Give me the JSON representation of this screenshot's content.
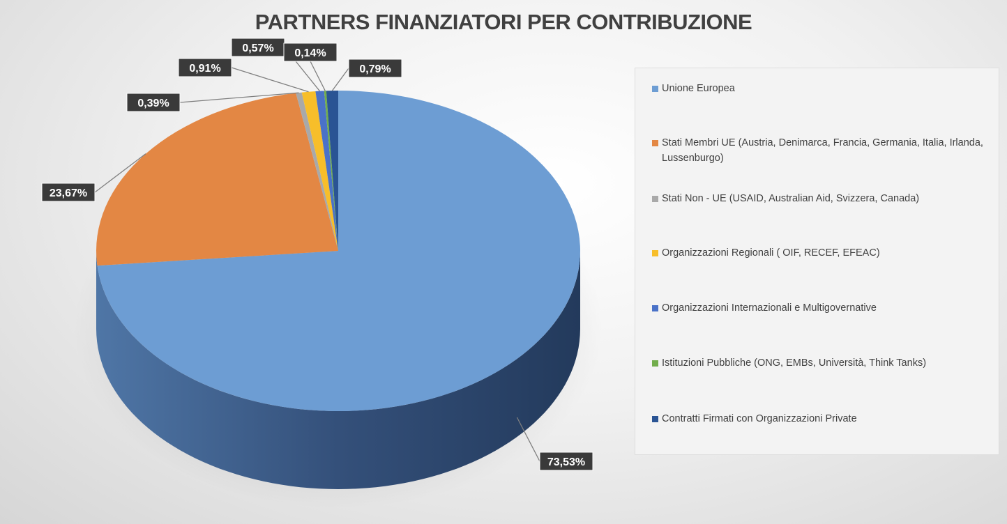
{
  "chart_data": {
    "type": "pie",
    "title": "PARTNERS FINANZIATORI PER CONTRIBUZIONE",
    "unit": "%",
    "legend_position": "right",
    "slices": [
      {
        "name": "Unione Europea",
        "value": 73.53,
        "label": "73,53%",
        "color": "#6d9dd3"
      },
      {
        "name": "Stati Membri UE (Austria, Denimarca, Francia, Germania, Italia, Irlanda, Lussenburgo)",
        "value": 23.67,
        "label": "23,67%",
        "color": "#e38744"
      },
      {
        "name": "Stati Non - UE  (USAID, Australian Aid, Svizzera, Canada)",
        "value": 0.39,
        "label": "0,39%",
        "color": "#a9a9a9"
      },
      {
        "name": "Organizzazioni Regionali  ( OIF, RECEF, EFEAC)",
        "value": 0.91,
        "label": "0,91%",
        "color": "#f7be2a"
      },
      {
        "name": "Organizzazioni Internazionali e Multigovernative",
        "value": 0.57,
        "label": "0,57%",
        "color": "#4a72c8"
      },
      {
        "name": "Istituzioni Pubbliche (ONG, EMBs, Università, Think Tanks)",
        "value": 0.14,
        "label": "0,14%",
        "color": "#72ad4c"
      },
      {
        "name": "Contratti Firmati con Organizzazioni Private",
        "value": 0.79,
        "label": "0,79%",
        "color": "#2a5494"
      }
    ]
  }
}
